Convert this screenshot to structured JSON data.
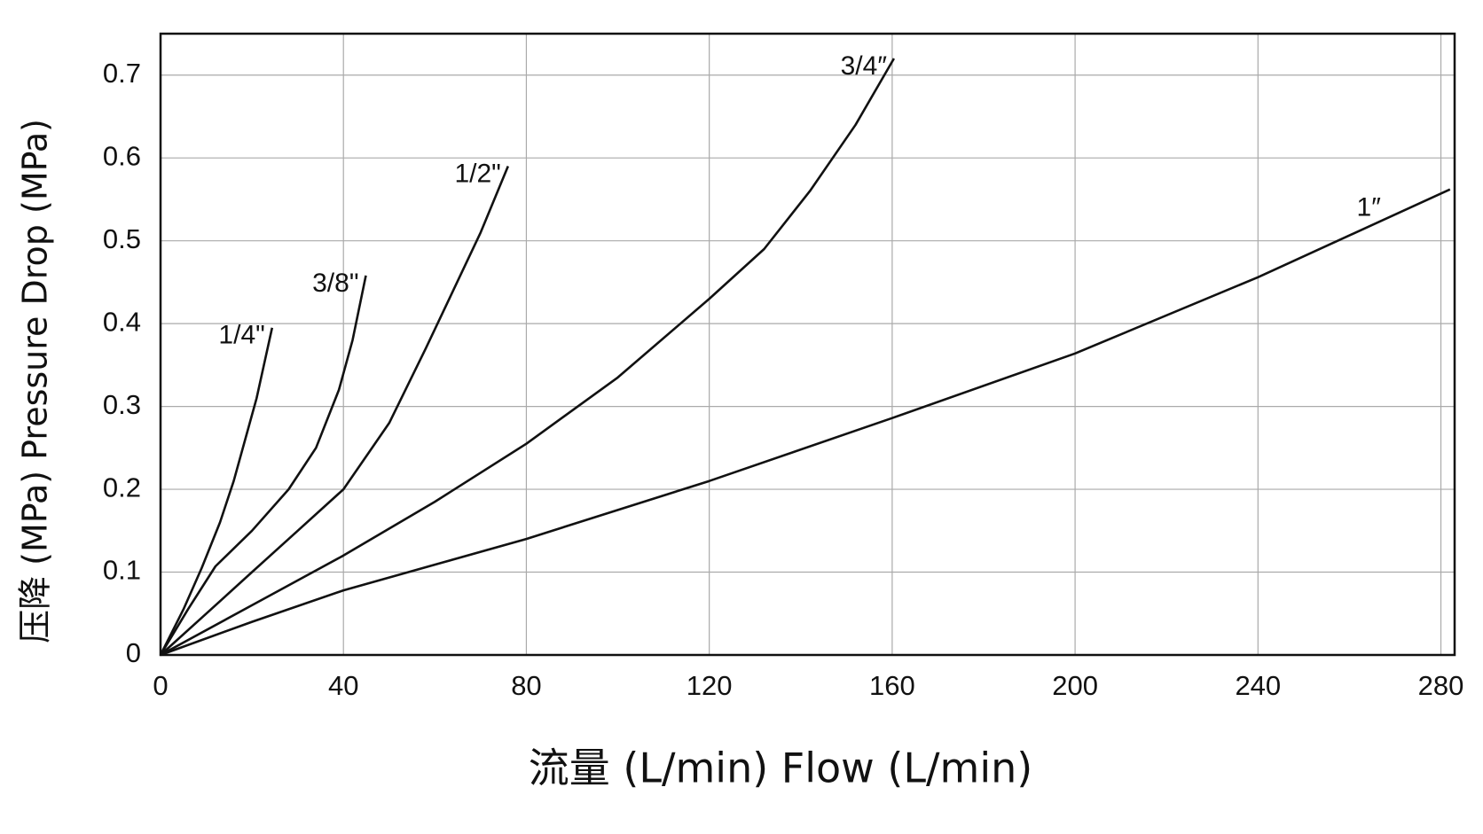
{
  "chart_data": {
    "type": "line",
    "x_label": "流量 (L/min)    Flow (L/min)",
    "y_label": "压降 (MPa)  Pressure Drop (MPa)",
    "xlim": [
      0,
      283
    ],
    "ylim": [
      0,
      0.75
    ],
    "xticks": [
      0,
      40,
      80,
      120,
      160,
      200,
      240,
      280
    ],
    "yticks": [
      0,
      0.1,
      0.2,
      0.3,
      0.4,
      0.5,
      0.6,
      0.7
    ],
    "grid": true,
    "series": [
      {
        "name": "1/4\"",
        "color": "#111111",
        "x": [
          0,
          5,
          9,
          13,
          16,
          19,
          21,
          23,
          24.4
        ],
        "values": [
          0,
          0.055,
          0.105,
          0.16,
          0.21,
          0.27,
          0.31,
          0.36,
          0.395
        ]
      },
      {
        "name": "3/8\"",
        "color": "#111111",
        "x": [
          0,
          6,
          12,
          20,
          28,
          34,
          39,
          42,
          44.9
        ],
        "values": [
          0,
          0.055,
          0.107,
          0.15,
          0.2,
          0.25,
          0.32,
          0.38,
          0.458
        ]
      },
      {
        "name": "1/2\"",
        "color": "#111111",
        "x": [
          0,
          10,
          20,
          30,
          40,
          50,
          58,
          64,
          70,
          76
        ],
        "values": [
          0,
          0.05,
          0.1,
          0.15,
          0.2,
          0.28,
          0.37,
          0.44,
          0.51,
          0.59
        ]
      },
      {
        "name": "3/4″",
        "color": "#111111",
        "x": [
          0,
          20,
          40,
          60,
          80,
          100,
          120,
          132,
          142,
          152,
          160.4
        ],
        "values": [
          0,
          0.06,
          0.12,
          0.185,
          0.255,
          0.335,
          0.43,
          0.49,
          0.56,
          0.64,
          0.72
        ]
      },
      {
        "name": "1″",
        "color": "#111111",
        "x": [
          0,
          20,
          40,
          80,
          120,
          160,
          200,
          240,
          282
        ],
        "values": [
          0,
          0.04,
          0.078,
          0.14,
          0.21,
          0.286,
          0.364,
          0.456,
          0.562
        ]
      }
    ]
  }
}
